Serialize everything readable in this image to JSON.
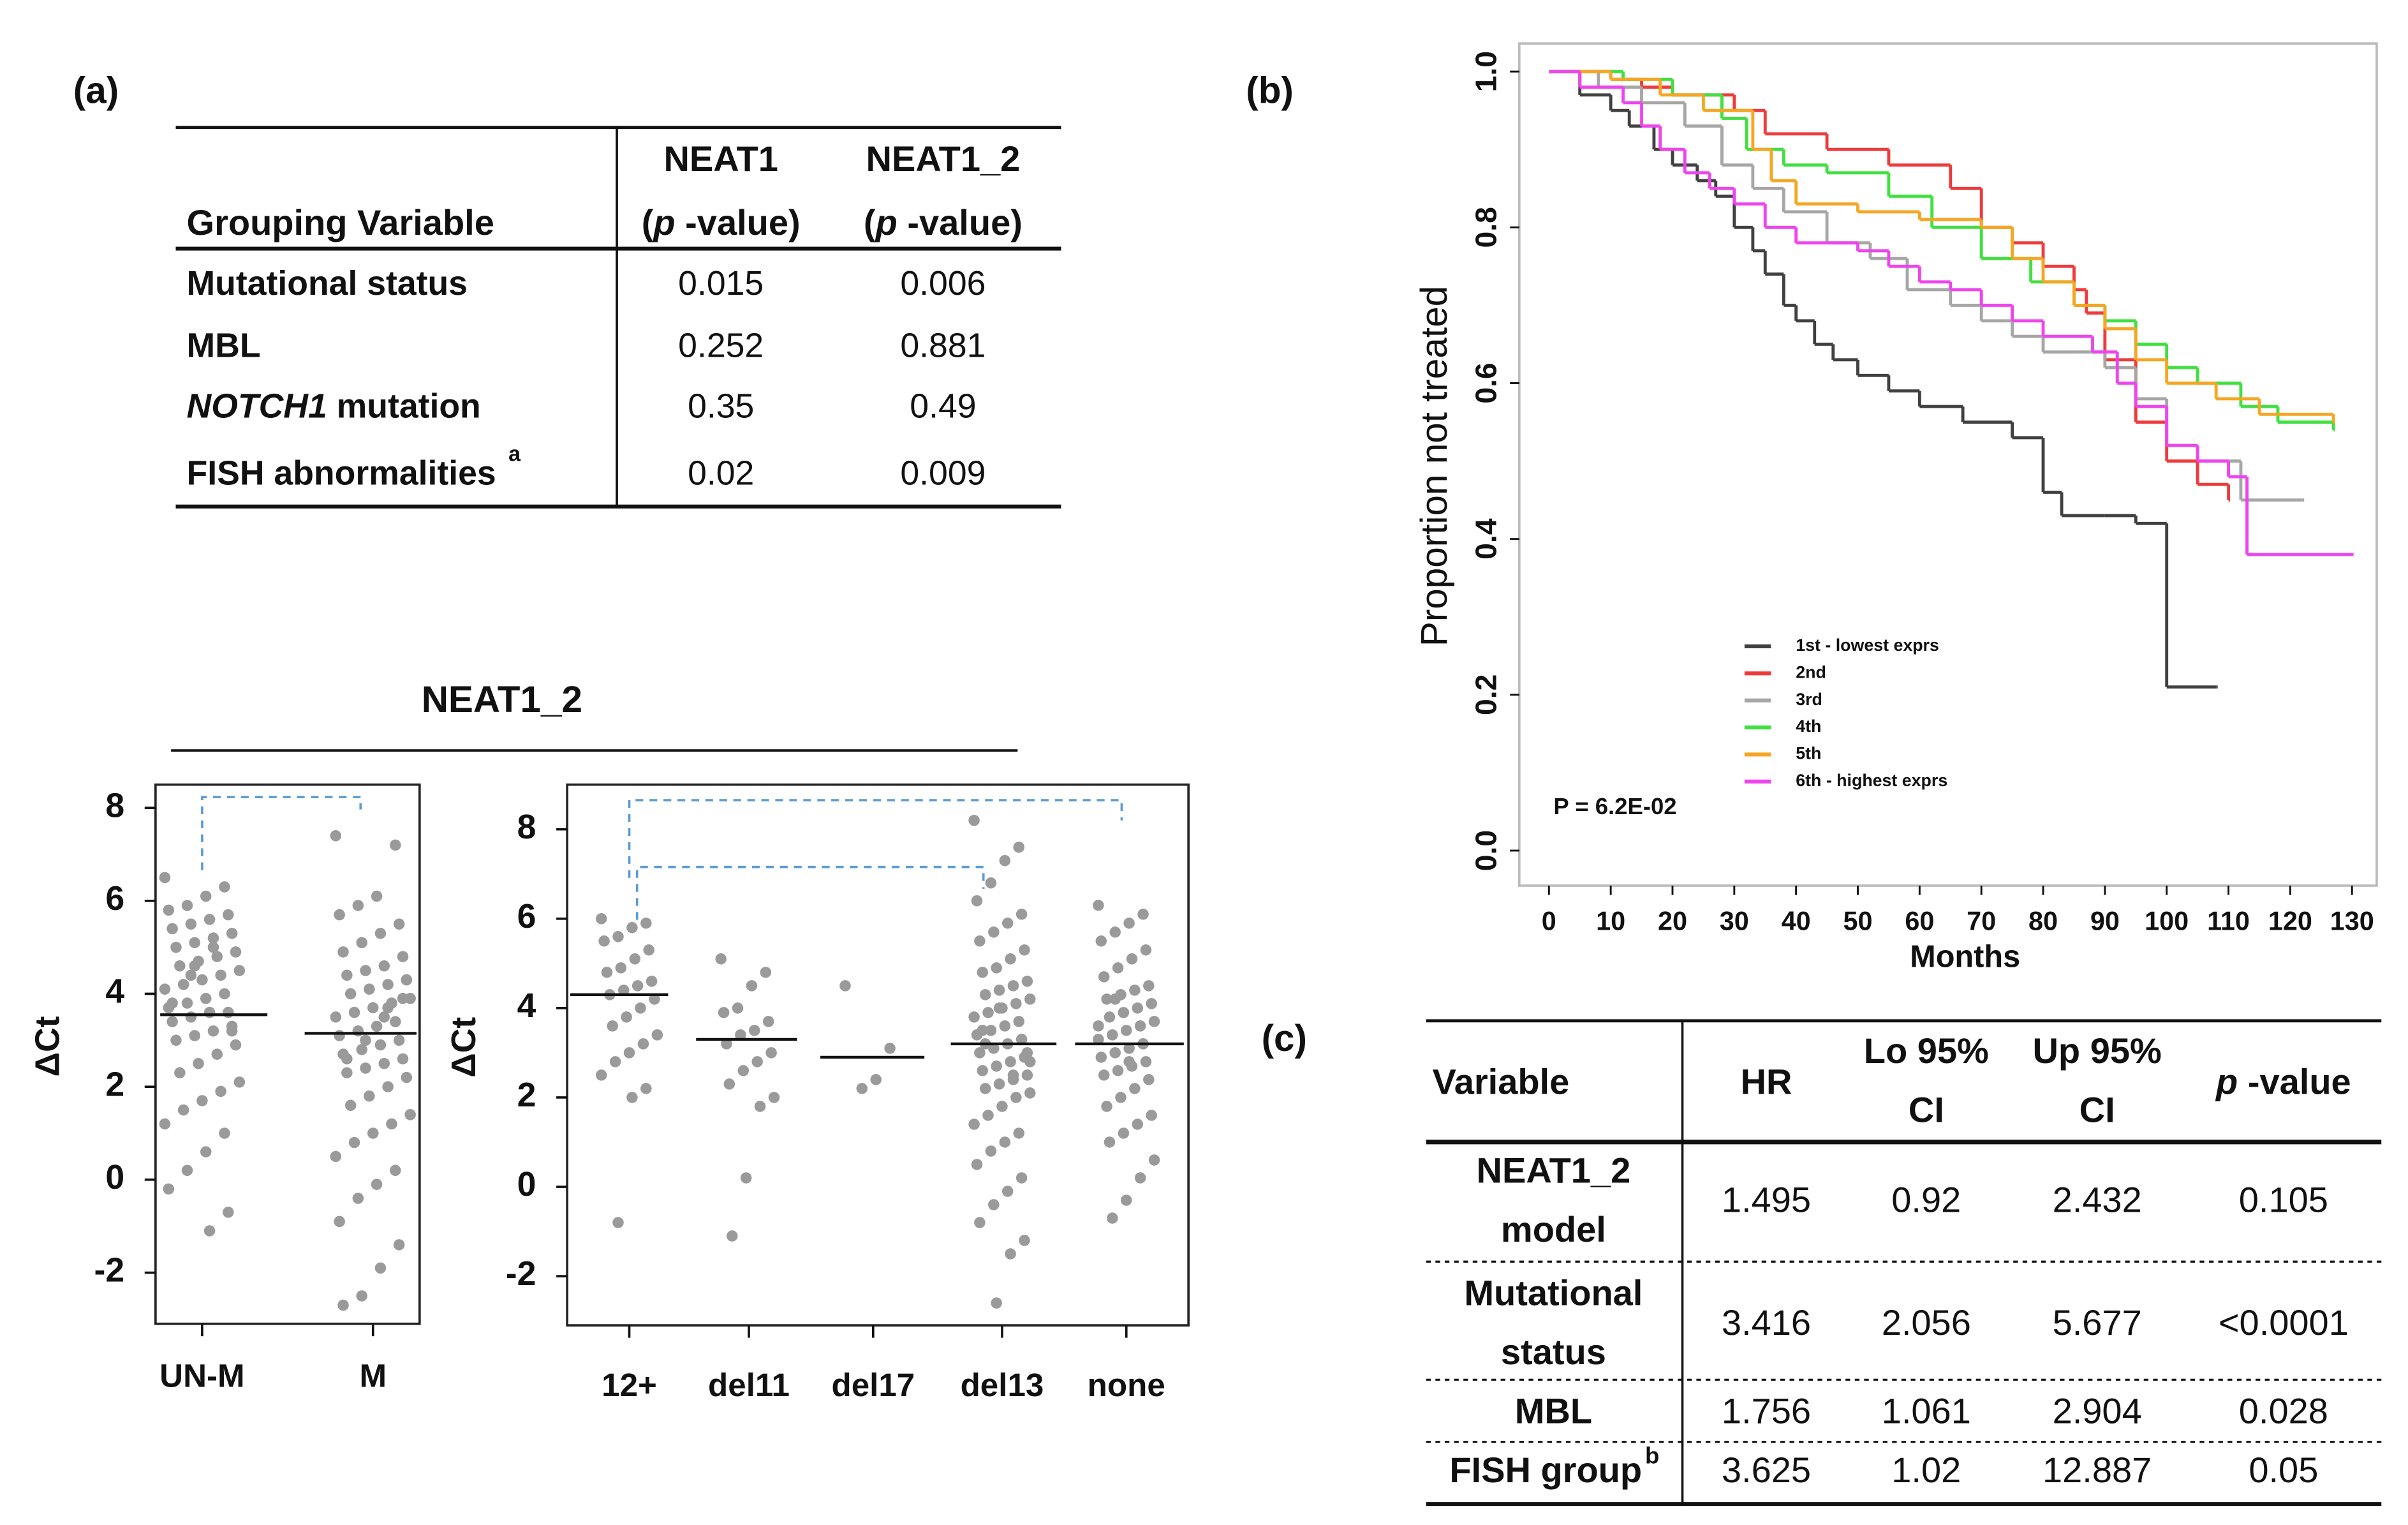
{
  "panel_labels": [
    "(a)",
    "(b)",
    "(c)"
  ],
  "table_a": {
    "columns": [
      [
        "Grouping Variable"
      ],
      [
        "NEAT1",
        "(p -value)"
      ],
      [
        "NEAT1_2",
        "(p -value)"
      ]
    ],
    "rows": [
      {
        "label": "Mutational status",
        "values": [
          "0.015",
          "0.006"
        ]
      },
      {
        "label": "MBL",
        "values": [
          "0.252",
          "0.881"
        ]
      },
      {
        "label": "NOTCH1 mutation",
        "values": [
          "0.35",
          "0.49"
        ]
      },
      {
        "label": "FISH abnormalities",
        "note": "a",
        "values": [
          "0.02",
          "0.009"
        ]
      }
    ]
  },
  "strip_title": "NEAT1_2",
  "chart_data": [
    {
      "type": "strip",
      "y_label": "ΔCt",
      "categories": [
        "UN-M",
        "M"
      ],
      "values": [
        [
          6.5,
          6.3,
          6.1,
          5.9,
          5.8,
          5.7,
          5.6,
          5.5,
          5.4,
          5.3,
          5.2,
          5.1,
          5.0,
          4.9,
          4.8,
          4.7,
          4.6,
          4.5,
          4.4,
          4.3,
          4.2,
          4.1,
          4.0,
          3.9,
          3.8,
          3.7,
          3.6,
          3.6,
          3.5,
          3.4,
          3.3,
          3.2,
          3.1,
          3.0,
          2.9,
          2.7,
          2.5,
          2.3,
          2.1,
          1.9,
          1.7,
          1.5,
          1.2,
          1.0,
          0.6,
          0.2,
          -0.2,
          -0.7,
          -1.1,
          4.4,
          3.8,
          3.2,
          5.0,
          4.6
        ],
        [
          7.4,
          7.2,
          6.1,
          5.9,
          5.7,
          5.5,
          5.3,
          5.1,
          4.9,
          4.8,
          4.6,
          4.5,
          4.4,
          4.3,
          4.2,
          4.1,
          4.0,
          3.9,
          3.8,
          3.7,
          3.6,
          3.5,
          3.4,
          3.3,
          3.2,
          3.1,
          3.0,
          2.9,
          2.8,
          2.7,
          2.6,
          2.5,
          2.4,
          2.3,
          2.2,
          2.0,
          1.8,
          1.6,
          1.4,
          1.2,
          1.0,
          0.8,
          0.5,
          0.2,
          -0.1,
          -0.4,
          -0.9,
          -1.4,
          -1.9,
          -2.5,
          -2.7,
          3.9,
          3.5,
          3.0,
          2.6,
          4.3,
          3.7
        ]
      ],
      "medians": [
        3.55,
        3.15
      ],
      "color": "#9a9a9a",
      "ylim": [
        -3.1,
        8.5
      ],
      "yticks": [
        -2,
        0,
        2,
        4,
        6,
        8
      ]
    },
    {
      "type": "strip",
      "y_label": "ΔCt",
      "categories": [
        "12+",
        "del11",
        "del17",
        "del13",
        "none"
      ],
      "values": [
        [
          6.0,
          5.9,
          5.8,
          5.6,
          5.5,
          5.3,
          5.1,
          4.9,
          4.8,
          4.6,
          4.5,
          4.4,
          4.3,
          4.2,
          4.0,
          3.8,
          3.6,
          3.4,
          3.2,
          3.0,
          2.8,
          2.5,
          2.2,
          2.0,
          -0.8
        ],
        [
          5.1,
          4.8,
          4.5,
          4.0,
          3.9,
          3.7,
          3.5,
          3.4,
          3.2,
          3.0,
          2.8,
          2.6,
          2.3,
          2.0,
          1.8,
          0.2,
          -1.1
        ],
        [
          4.5,
          3.1,
          2.4,
          2.2
        ],
        [
          8.2,
          7.6,
          7.3,
          6.8,
          6.4,
          6.1,
          5.9,
          5.7,
          5.5,
          5.3,
          5.1,
          4.9,
          4.8,
          4.6,
          4.5,
          4.4,
          4.3,
          4.2,
          4.1,
          4.0,
          3.9,
          3.8,
          3.7,
          3.6,
          3.5,
          3.4,
          3.3,
          3.2,
          3.1,
          3.0,
          2.9,
          2.8,
          2.7,
          2.6,
          2.5,
          2.4,
          2.3,
          2.2,
          2.1,
          2.0,
          1.8,
          1.6,
          1.4,
          1.2,
          1.0,
          0.8,
          0.5,
          0.2,
          -0.1,
          -0.4,
          -0.8,
          -1.2,
          -1.5,
          -2.6,
          3.5,
          3.0,
          2.5,
          4.0,
          3.2,
          2.8
        ],
        [
          6.3,
          6.1,
          5.9,
          5.7,
          5.5,
          5.3,
          5.1,
          4.9,
          4.7,
          4.5,
          4.4,
          4.3,
          4.2,
          4.1,
          4.0,
          3.9,
          3.8,
          3.7,
          3.6,
          3.5,
          3.4,
          3.3,
          3.2,
          3.1,
          3.0,
          2.9,
          2.8,
          2.7,
          2.6,
          2.5,
          2.4,
          2.2,
          2.0,
          1.8,
          1.6,
          1.4,
          1.2,
          1.0,
          0.6,
          0.2,
          -0.3,
          -0.7,
          3.6,
          3.2,
          2.8,
          4.2
        ]
      ],
      "medians": [
        4.3,
        3.3,
        2.9,
        3.2,
        3.2
      ],
      "color": "#9a9a9a",
      "ylim": [
        -3.1,
        9.0
      ],
      "yticks": [
        -2,
        0,
        2,
        4,
        6,
        8
      ]
    },
    {
      "type": "step",
      "x_label": "Months",
      "y_label": "Proportion not treated",
      "annotation": "P = 6.2E-02",
      "legend": "bottom",
      "xlim": [
        -4.8,
        134
      ],
      "ylim": [
        -0.045,
        1.036
      ],
      "xticks": [
        0,
        10,
        20,
        30,
        40,
        50,
        60,
        70,
        80,
        90,
        100,
        110,
        120,
        130
      ],
      "yticks": [
        {
          "value": 0,
          "label": "0.0"
        },
        0.2,
        0.4,
        0.6,
        0.8,
        {
          "value": 1,
          "label": "1.0"
        }
      ],
      "series": [
        {
          "name": "1st - lowest exprs",
          "color": "#404040",
          "x": [
            0,
            5,
            10,
            13,
            17,
            20,
            24,
            27,
            30,
            33,
            35,
            38,
            40,
            43,
            46,
            50,
            55,
            60,
            67,
            75,
            80,
            83,
            90,
            95,
            100,
            108
          ],
          "y": [
            1,
            0.97,
            0.95,
            0.93,
            0.9,
            0.88,
            0.86,
            0.84,
            0.8,
            0.77,
            0.74,
            0.7,
            0.68,
            0.65,
            0.63,
            0.61,
            0.59,
            0.57,
            0.55,
            0.53,
            0.46,
            0.43,
            0.43,
            0.42,
            0.21,
            0.21
          ]
        },
        {
          "name": "2nd",
          "color": "#ee3b3b",
          "x": [
            0,
            10,
            15,
            20,
            30,
            35,
            45,
            55,
            65,
            70,
            75,
            80,
            85,
            87,
            90,
            95,
            100,
            105,
            110
          ],
          "y": [
            1,
            0.99,
            0.98,
            0.97,
            0.95,
            0.92,
            0.9,
            0.88,
            0.85,
            0.8,
            0.78,
            0.75,
            0.72,
            0.69,
            0.63,
            0.55,
            0.5,
            0.47,
            0.45
          ]
        },
        {
          "name": "3rd",
          "color": "#a6a6a6",
          "x": [
            0,
            8,
            15,
            22,
            28,
            33,
            38,
            45,
            52,
            58,
            65,
            70,
            75,
            80,
            85,
            90,
            95,
            100,
            105,
            112,
            122
          ],
          "y": [
            1,
            0.98,
            0.96,
            0.93,
            0.88,
            0.85,
            0.82,
            0.78,
            0.76,
            0.72,
            0.7,
            0.68,
            0.66,
            0.64,
            0.64,
            0.62,
            0.58,
            0.52,
            0.5,
            0.45,
            0.45
          ]
        },
        {
          "name": "4th",
          "color": "#3fe03f",
          "x": [
            0,
            12,
            20,
            28,
            32,
            38,
            45,
            55,
            62,
            70,
            78,
            85,
            90,
            95,
            100,
            105,
            112,
            118,
            127
          ],
          "y": [
            1,
            0.99,
            0.97,
            0.94,
            0.9,
            0.88,
            0.87,
            0.84,
            0.8,
            0.76,
            0.73,
            0.7,
            0.68,
            0.65,
            0.62,
            0.6,
            0.57,
            0.55,
            0.54
          ]
        },
        {
          "name": "5th",
          "color": "#f5a623",
          "x": [
            0,
            10,
            18,
            25,
            33,
            36,
            40,
            50,
            60,
            70,
            75,
            80,
            85,
            90,
            95,
            100,
            108,
            115,
            127
          ],
          "y": [
            1,
            0.99,
            0.97,
            0.95,
            0.9,
            0.86,
            0.83,
            0.82,
            0.81,
            0.8,
            0.76,
            0.73,
            0.7,
            0.67,
            0.63,
            0.6,
            0.58,
            0.56,
            0.55
          ]
        },
        {
          "name": "6th - highest exprs",
          "color": "#ee44ee",
          "x": [
            0,
            5,
            12,
            15,
            18,
            22,
            26,
            30,
            35,
            40,
            45,
            50,
            55,
            60,
            65,
            70,
            75,
            80,
            88,
            92,
            95,
            100,
            105,
            110,
            113,
            130
          ],
          "y": [
            1,
            0.98,
            0.96,
            0.93,
            0.9,
            0.87,
            0.85,
            0.83,
            0.8,
            0.78,
            0.78,
            0.77,
            0.75,
            0.73,
            0.72,
            0.7,
            0.68,
            0.66,
            0.64,
            0.6,
            0.57,
            0.52,
            0.5,
            0.48,
            0.38,
            0.38
          ]
        }
      ]
    }
  ],
  "table_c": {
    "columns": [
      [
        "Variable"
      ],
      [
        "HR"
      ],
      [
        "Lo 95%",
        "CI"
      ],
      [
        "Up 95%",
        "CI"
      ],
      [
        "p -value"
      ]
    ],
    "rows": [
      {
        "label": [
          "NEAT1_2",
          "model"
        ],
        "values": [
          "1.495",
          "0.92",
          "2.432",
          "0.105"
        ]
      },
      {
        "label": [
          "Mutational",
          "status"
        ],
        "values": [
          "3.416",
          "2.056",
          "5.677",
          "<0.0001"
        ]
      },
      {
        "label": [
          "MBL"
        ],
        "values": [
          "1.756",
          "1.061",
          "2.904",
          "0.028"
        ]
      },
      {
        "label": [
          "FISH group"
        ],
        "note": "b",
        "values": [
          "3.625",
          "1.02",
          "12.887",
          "0.05"
        ]
      }
    ]
  }
}
